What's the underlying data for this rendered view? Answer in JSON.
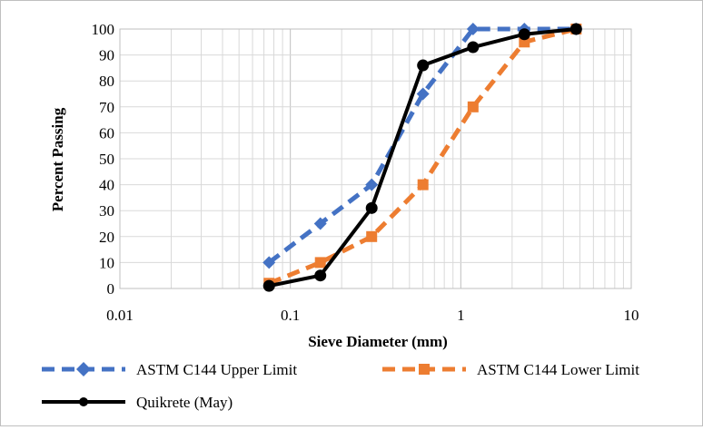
{
  "chart_data": {
    "type": "line",
    "xlabel": "Sieve Diameter (mm)",
    "ylabel": "Percent Passing",
    "xscale": "log",
    "xlim": [
      0.01,
      10
    ],
    "ylim": [
      0,
      100
    ],
    "x_ticks": [
      "0.01",
      "0.1",
      "1",
      "10"
    ],
    "y_ticks": [
      "0",
      "10",
      "20",
      "30",
      "40",
      "50",
      "60",
      "70",
      "80",
      "90",
      "100"
    ],
    "grid": true,
    "legend_position": "bottom",
    "series": [
      {
        "name": "ASTM C144 Upper Limit",
        "color": "#4472c4",
        "line_style": "dashed",
        "marker": "diamond",
        "x": [
          0.075,
          0.15,
          0.3,
          0.6,
          1.18,
          2.36,
          4.75
        ],
        "y": [
          10,
          25,
          40,
          75,
          100,
          100,
          100
        ]
      },
      {
        "name": "ASTM C144 Lower Limit",
        "color": "#ed7d31",
        "line_style": "dashed",
        "marker": "square",
        "x": [
          0.075,
          0.15,
          0.3,
          0.6,
          1.18,
          2.36,
          4.75
        ],
        "y": [
          2,
          10,
          20,
          40,
          70,
          95,
          100
        ]
      },
      {
        "name": "Quikrete (May)",
        "color": "#000000",
        "line_style": "solid",
        "marker": "circle",
        "x": [
          0.075,
          0.15,
          0.3,
          0.6,
          1.18,
          2.36,
          4.75
        ],
        "y": [
          1,
          5,
          31,
          86,
          93,
          98,
          100
        ]
      }
    ]
  }
}
